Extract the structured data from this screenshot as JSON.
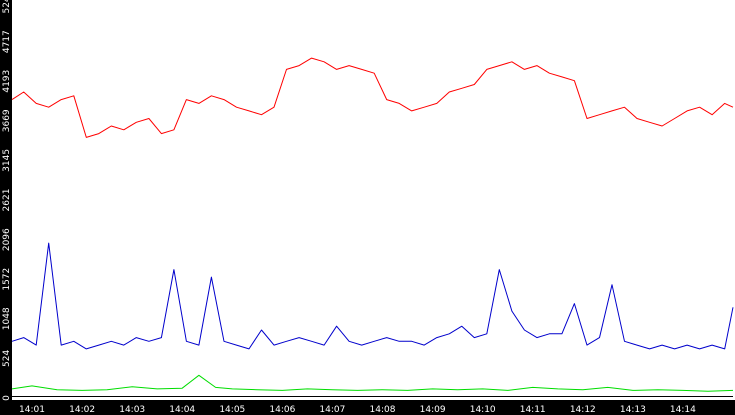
{
  "chart_data": {
    "type": "line",
    "title": "",
    "xlabel": "",
    "ylabel": "",
    "ylim": [
      0,
      5242
    ],
    "xlim": [
      "14:00:36",
      "14:15:00"
    ],
    "grid": false,
    "legend": "none",
    "y_ticks": [
      "0",
      "524",
      "1048",
      "1572",
      "2096",
      "2621",
      "3145",
      "3669",
      "4193",
      "4717",
      "5242"
    ],
    "x_ticks": [
      "14:01",
      "14:02",
      "14:03",
      "14:04",
      "14:05",
      "14:06",
      "14:07",
      "14:08",
      "14:09",
      "14:10",
      "14:11",
      "14:12",
      "14:13",
      "14:14"
    ],
    "colors": {
      "red": "#ff0000",
      "blue": "#0000cc",
      "green": "#00dd00",
      "black": "#000000",
      "background": "#ffffff",
      "axis_bg": "#000000",
      "tick_text": "#ffffff"
    },
    "series": [
      {
        "color": "#ff0000",
        "x": [
          "14:00:36",
          "14:00:50",
          "14:01:05",
          "14:01:20",
          "14:01:35",
          "14:01:50",
          "14:02:05",
          "14:02:20",
          "14:02:35",
          "14:02:50",
          "14:03:05",
          "14:03:20",
          "14:03:35",
          "14:03:50",
          "14:04:05",
          "14:04:20",
          "14:04:35",
          "14:04:50",
          "14:05:05",
          "14:05:20",
          "14:05:35",
          "14:05:50",
          "14:06:05",
          "14:06:20",
          "14:06:35",
          "14:06:50",
          "14:07:05",
          "14:07:20",
          "14:07:35",
          "14:07:50",
          "14:08:05",
          "14:08:20",
          "14:08:35",
          "14:08:50",
          "14:09:05",
          "14:09:20",
          "14:09:35",
          "14:09:50",
          "14:10:05",
          "14:10:20",
          "14:10:35",
          "14:10:50",
          "14:11:05",
          "14:11:20",
          "14:11:35",
          "14:11:50",
          "14:12:05",
          "14:12:20",
          "14:12:35",
          "14:12:50",
          "14:13:05",
          "14:13:20",
          "14:13:35",
          "14:13:50",
          "14:14:05",
          "14:14:20",
          "14:14:35",
          "14:14:50",
          "14:15:00"
        ],
        "values": [
          3950,
          4050,
          3900,
          3850,
          3950,
          4000,
          3450,
          3500,
          3600,
          3550,
          3650,
          3700,
          3500,
          3550,
          3950,
          3900,
          4000,
          3950,
          3850,
          3800,
          3750,
          3850,
          4350,
          4400,
          4500,
          4450,
          4350,
          4400,
          4350,
          4300,
          3950,
          3900,
          3800,
          3850,
          3900,
          4050,
          4100,
          4150,
          4350,
          4400,
          4450,
          4350,
          4400,
          4300,
          4250,
          4200,
          3700,
          3750,
          3800,
          3850,
          3700,
          3650,
          3600,
          3700,
          3800,
          3850,
          3750,
          3900,
          3850
        ]
      },
      {
        "color": "#0000cc",
        "x": [
          "14:00:36",
          "14:00:50",
          "14:01:05",
          "14:01:20",
          "14:01:35",
          "14:01:50",
          "14:02:05",
          "14:02:20",
          "14:02:35",
          "14:02:50",
          "14:03:05",
          "14:03:20",
          "14:03:35",
          "14:03:50",
          "14:04:05",
          "14:04:20",
          "14:04:35",
          "14:04:50",
          "14:05:05",
          "14:05:20",
          "14:05:35",
          "14:05:50",
          "14:06:05",
          "14:06:20",
          "14:06:35",
          "14:06:50",
          "14:07:05",
          "14:07:20",
          "14:07:35",
          "14:07:50",
          "14:08:05",
          "14:08:20",
          "14:08:35",
          "14:08:50",
          "14:09:05",
          "14:09:20",
          "14:09:35",
          "14:09:50",
          "14:10:05",
          "14:10:20",
          "14:10:35",
          "14:10:50",
          "14:11:05",
          "14:11:20",
          "14:11:35",
          "14:11:50",
          "14:12:05",
          "14:12:20",
          "14:12:35",
          "14:12:50",
          "14:13:05",
          "14:13:20",
          "14:13:35",
          "14:13:50",
          "14:14:05",
          "14:14:20",
          "14:14:35",
          "14:14:50",
          "14:15:00"
        ],
        "values": [
          750,
          800,
          700,
          2050,
          700,
          750,
          650,
          700,
          750,
          700,
          800,
          750,
          800,
          1700,
          750,
          700,
          1600,
          750,
          700,
          650,
          900,
          700,
          750,
          800,
          750,
          700,
          950,
          750,
          700,
          750,
          800,
          750,
          750,
          700,
          800,
          850,
          950,
          800,
          850,
          1700,
          1150,
          900,
          800,
          850,
          850,
          1250,
          700,
          800,
          1500,
          750,
          700,
          650,
          700,
          650,
          700,
          650,
          700,
          650,
          1200
        ]
      },
      {
        "color": "#00dd00",
        "x": [
          "14:00:36",
          "14:01:00",
          "14:01:30",
          "14:02:00",
          "14:02:30",
          "14:03:00",
          "14:03:30",
          "14:04:00",
          "14:04:20",
          "14:04:40",
          "14:05:00",
          "14:05:30",
          "14:06:00",
          "14:06:30",
          "14:07:00",
          "14:07:30",
          "14:08:00",
          "14:08:30",
          "14:09:00",
          "14:09:30",
          "14:10:00",
          "14:10:30",
          "14:11:00",
          "14:11:30",
          "14:12:00",
          "14:12:30",
          "14:13:00",
          "14:13:30",
          "14:14:00",
          "14:14:30",
          "14:15:00"
        ],
        "values": [
          120,
          160,
          110,
          100,
          110,
          150,
          120,
          130,
          300,
          140,
          120,
          110,
          100,
          120,
          110,
          100,
          110,
          100,
          120,
          110,
          120,
          100,
          140,
          120,
          110,
          140,
          100,
          110,
          100,
          90,
          100
        ]
      },
      {
        "color": "#000000",
        "x": [
          "14:00:36",
          "14:15:00"
        ],
        "values": [
          20,
          20
        ]
      }
    ]
  }
}
